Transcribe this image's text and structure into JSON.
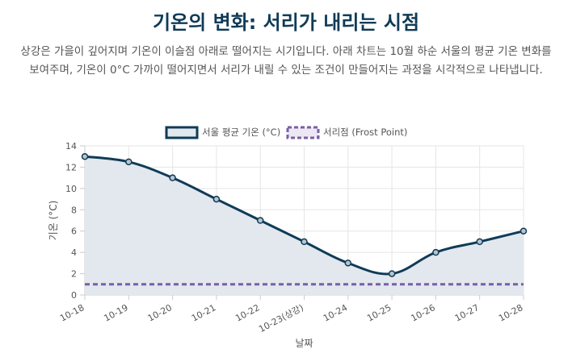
{
  "header": {
    "title": "기온의 변화: 서리가 내리는 시점",
    "description": "상강은 가을이 깊어지며 기온이 이슬점 아래로 떨어지는 시기입니다. 아래 차트는 10월 하순 서울의 평균 기온 변화를 보여주며, 기온이 0°C 가까이 떨어지면서 서리가 내릴 수 있는 조건이 만들어지는 과정을 시각적으로 나타냅니다."
  },
  "chart_data": {
    "type": "line",
    "categories": [
      "10-18",
      "10-19",
      "10-20",
      "10-21",
      "10-22",
      "10-23(상강)",
      "10-24",
      "10-25",
      "10-26",
      "10-27",
      "10-28"
    ],
    "series": [
      {
        "name": "서울 평균 기온 (°C)",
        "values": [
          13,
          12.5,
          11,
          9,
          7,
          5,
          3,
          2,
          4,
          5,
          6
        ],
        "color": "#0f3b57",
        "fill": "#e2e8ee",
        "style": "solid"
      },
      {
        "name": "서리점 (Frost Point)",
        "values": [
          1,
          1,
          1,
          1,
          1,
          1,
          1,
          1,
          1,
          1,
          1
        ],
        "color": "#7b5ea7",
        "style": "dashed"
      }
    ],
    "xlabel": "날짜",
    "ylabel": "기온 (°C)",
    "ylim": [
      0,
      14
    ],
    "yticks": [
      0,
      2,
      4,
      6,
      8,
      10,
      12,
      14
    ],
    "grid": true,
    "legend": "top-center"
  }
}
